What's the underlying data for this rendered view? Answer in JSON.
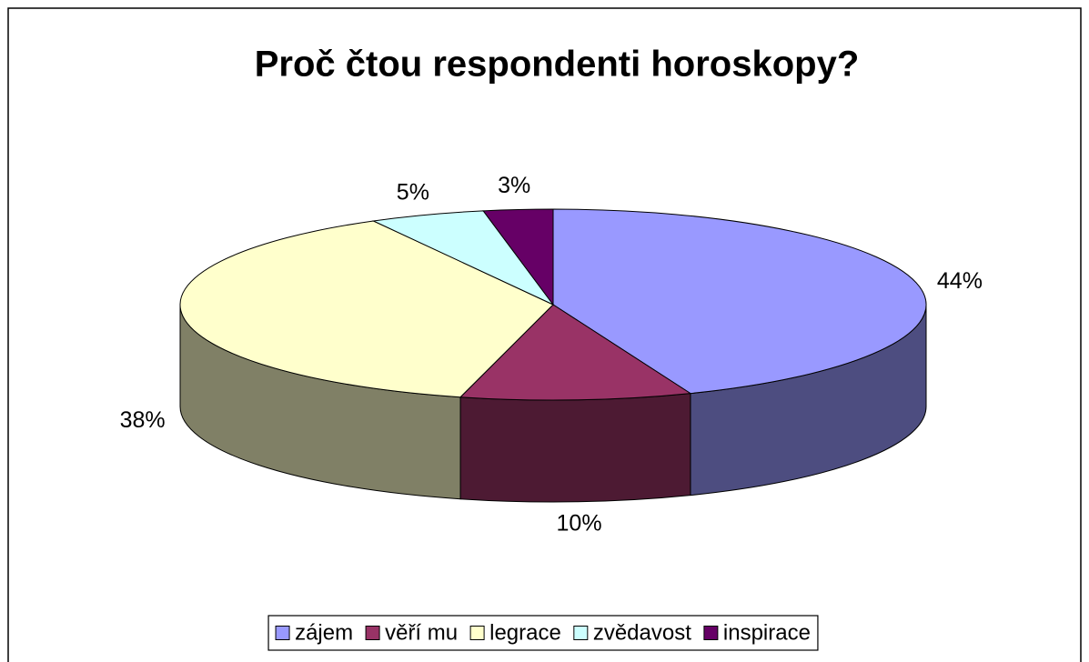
{
  "chart_data": {
    "type": "pie",
    "title": "Proč čtou respondenti horoskopy?",
    "categories": [
      "zájem",
      "věří mu",
      "legrace",
      "zvědavost",
      "inspirace"
    ],
    "values": [
      44,
      10,
      38,
      5,
      3
    ],
    "value_labels": [
      "44%",
      "10%",
      "38%",
      "5%",
      "3%"
    ],
    "colors": [
      "#9999ff",
      "#993366",
      "#ffffcc",
      "#ccffff",
      "#660066"
    ],
    "legend": "bottom"
  }
}
